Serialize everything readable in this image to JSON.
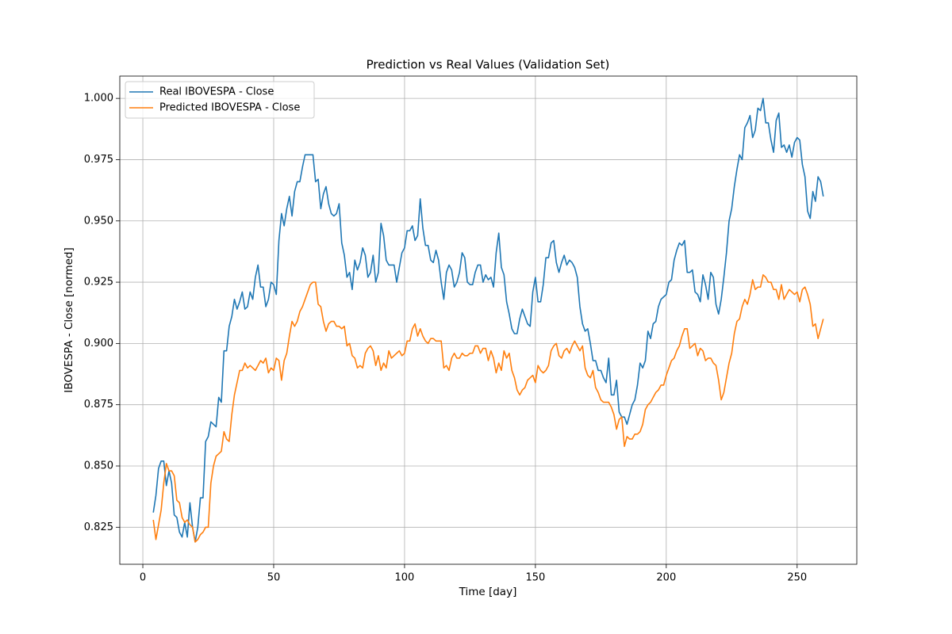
{
  "chart_data": {
    "type": "line",
    "title": "Prediction vs Real Values (Validation Set)",
    "xlabel": "Time [day]",
    "ylabel": "IBOVESPA - Close [normed]",
    "x": [
      4,
      5,
      6,
      7,
      8,
      9,
      10,
      11,
      12,
      13,
      14,
      15,
      16,
      17,
      18,
      19,
      20,
      21,
      22,
      23,
      24,
      25,
      26,
      27,
      28,
      29,
      30,
      31,
      32,
      33,
      34,
      35,
      36,
      37,
      38,
      39,
      40,
      41,
      42,
      43,
      44,
      45,
      46,
      47,
      48,
      49,
      50,
      51,
      52,
      53,
      54,
      55,
      56,
      57,
      58,
      59,
      60,
      61,
      62,
      63,
      64,
      65,
      66,
      67,
      68,
      69,
      70,
      71,
      72,
      73,
      74,
      75,
      76,
      77,
      78,
      79,
      80,
      81,
      82,
      83,
      84,
      85,
      86,
      87,
      88,
      89,
      90,
      91,
      92,
      93,
      94,
      95,
      96,
      97,
      98,
      99,
      100,
      101,
      102,
      103,
      104,
      105,
      106,
      107,
      108,
      109,
      110,
      111,
      112,
      113,
      114,
      115,
      116,
      117,
      118,
      119,
      120,
      121,
      122,
      123,
      124,
      125,
      126,
      127,
      128,
      129,
      130,
      131,
      132,
      133,
      134,
      135,
      136,
      137,
      138,
      139,
      140,
      141,
      142,
      143,
      144,
      145,
      146,
      147,
      148,
      149,
      150,
      151,
      152,
      153,
      154,
      155,
      156,
      157,
      158,
      159,
      160,
      161,
      162,
      163,
      164,
      165,
      166,
      167,
      168,
      169,
      170,
      171,
      172,
      173,
      174,
      175,
      176,
      177,
      178,
      179,
      180,
      181,
      182,
      183,
      184,
      185,
      186,
      187,
      188,
      189,
      190,
      191,
      192,
      193,
      194,
      195,
      196,
      197,
      198,
      199,
      200,
      201,
      202,
      203,
      204,
      205,
      206,
      207,
      208,
      209,
      210,
      211,
      212,
      213,
      214,
      215,
      216,
      217,
      218,
      219,
      220,
      221,
      222,
      223,
      224,
      225,
      226,
      227,
      228,
      229,
      230,
      231,
      232,
      233,
      234,
      235,
      236,
      237,
      238,
      239,
      240,
      241,
      242,
      243,
      244,
      245,
      246,
      247,
      248,
      249,
      250,
      251,
      252,
      253,
      254,
      255,
      256,
      257,
      258,
      259,
      260
    ],
    "series": [
      {
        "name": "Real IBOVESPA - Close",
        "color": "#1f77b4",
        "values": [
          0.831,
          0.838,
          0.849,
          0.852,
          0.852,
          0.842,
          0.848,
          0.843,
          0.83,
          0.829,
          0.823,
          0.821,
          0.827,
          0.821,
          0.835,
          0.825,
          0.819,
          0.825,
          0.837,
          0.837,
          0.86,
          0.862,
          0.868,
          0.867,
          0.866,
          0.878,
          0.876,
          0.897,
          0.897,
          0.907,
          0.911,
          0.918,
          0.914,
          0.917,
          0.921,
          0.914,
          0.915,
          0.921,
          0.918,
          0.927,
          0.932,
          0.923,
          0.923,
          0.915,
          0.918,
          0.925,
          0.924,
          0.92,
          0.942,
          0.953,
          0.948,
          0.955,
          0.96,
          0.952,
          0.962,
          0.966,
          0.966,
          0.972,
          0.977,
          0.977,
          0.977,
          0.977,
          0.966,
          0.967,
          0.955,
          0.961,
          0.964,
          0.957,
          0.953,
          0.952,
          0.953,
          0.957,
          0.941,
          0.936,
          0.927,
          0.929,
          0.922,
          0.934,
          0.93,
          0.933,
          0.939,
          0.936,
          0.927,
          0.929,
          0.936,
          0.925,
          0.929,
          0.949,
          0.944,
          0.934,
          0.932,
          0.932,
          0.932,
          0.925,
          0.931,
          0.937,
          0.939,
          0.946,
          0.946,
          0.948,
          0.942,
          0.944,
          0.959,
          0.947,
          0.94,
          0.94,
          0.934,
          0.933,
          0.938,
          0.934,
          0.925,
          0.918,
          0.929,
          0.932,
          0.93,
          0.923,
          0.925,
          0.929,
          0.937,
          0.935,
          0.925,
          0.924,
          0.924,
          0.929,
          0.932,
          0.932,
          0.925,
          0.928,
          0.926,
          0.927,
          0.923,
          0.937,
          0.945,
          0.931,
          0.928,
          0.917,
          0.912,
          0.906,
          0.904,
          0.904,
          0.91,
          0.914,
          0.911,
          0.908,
          0.907,
          0.921,
          0.927,
          0.917,
          0.917,
          0.924,
          0.935,
          0.935,
          0.941,
          0.942,
          0.933,
          0.929,
          0.933,
          0.936,
          0.932,
          0.934,
          0.933,
          0.931,
          0.927,
          0.915,
          0.908,
          0.905,
          0.906,
          0.9,
          0.893,
          0.893,
          0.889,
          0.889,
          0.886,
          0.884,
          0.894,
          0.879,
          0.879,
          0.885,
          0.872,
          0.87,
          0.87,
          0.867,
          0.871,
          0.875,
          0.877,
          0.883,
          0.892,
          0.89,
          0.893,
          0.905,
          0.902,
          0.908,
          0.909,
          0.915,
          0.918,
          0.919,
          0.92,
          0.925,
          0.926,
          0.934,
          0.938,
          0.941,
          0.94,
          0.942,
          0.929,
          0.929,
          0.93,
          0.921,
          0.92,
          0.917,
          0.928,
          0.924,
          0.918,
          0.929,
          0.927,
          0.916,
          0.912,
          0.918,
          0.927,
          0.937,
          0.95,
          0.955,
          0.964,
          0.971,
          0.977,
          0.975,
          0.988,
          0.99,
          0.993,
          0.984,
          0.987,
          0.996,
          0.995,
          1.0,
          0.99,
          0.99,
          0.983,
          0.978,
          0.991,
          0.994,
          0.98,
          0.981,
          0.978,
          0.981,
          0.976,
          0.982,
          0.984,
          0.983,
          0.973,
          0.968,
          0.954,
          0.951,
          0.962,
          0.958,
          0.968,
          0.966,
          0.96
        ]
      },
      {
        "name": "Predicted IBOVESPA - Close",
        "color": "#ff7f0e",
        "values": [
          0.828,
          0.82,
          0.826,
          0.832,
          0.843,
          0.851,
          0.848,
          0.848,
          0.846,
          0.836,
          0.835,
          0.829,
          0.827,
          0.828,
          0.826,
          0.825,
          0.819,
          0.82,
          0.822,
          0.823,
          0.825,
          0.825,
          0.843,
          0.85,
          0.854,
          0.855,
          0.856,
          0.864,
          0.861,
          0.86,
          0.871,
          0.879,
          0.884,
          0.889,
          0.889,
          0.892,
          0.89,
          0.891,
          0.89,
          0.889,
          0.891,
          0.893,
          0.892,
          0.894,
          0.888,
          0.89,
          0.889,
          0.894,
          0.893,
          0.885,
          0.893,
          0.896,
          0.903,
          0.909,
          0.907,
          0.909,
          0.913,
          0.915,
          0.918,
          0.921,
          0.924,
          0.925,
          0.925,
          0.916,
          0.915,
          0.909,
          0.905,
          0.908,
          0.909,
          0.909,
          0.907,
          0.907,
          0.906,
          0.907,
          0.899,
          0.9,
          0.895,
          0.894,
          0.89,
          0.891,
          0.89,
          0.896,
          0.898,
          0.899,
          0.897,
          0.891,
          0.895,
          0.889,
          0.892,
          0.89,
          0.897,
          0.894,
          0.895,
          0.896,
          0.897,
          0.895,
          0.896,
          0.901,
          0.901,
          0.906,
          0.908,
          0.903,
          0.906,
          0.903,
          0.901,
          0.9,
          0.902,
          0.902,
          0.901,
          0.901,
          0.901,
          0.89,
          0.891,
          0.889,
          0.894,
          0.896,
          0.894,
          0.894,
          0.896,
          0.895,
          0.895,
          0.896,
          0.896,
          0.899,
          0.899,
          0.896,
          0.898,
          0.898,
          0.893,
          0.897,
          0.894,
          0.888,
          0.892,
          0.889,
          0.897,
          0.894,
          0.896,
          0.889,
          0.886,
          0.881,
          0.879,
          0.881,
          0.882,
          0.885,
          0.886,
          0.887,
          0.884,
          0.891,
          0.889,
          0.888,
          0.889,
          0.891,
          0.897,
          0.899,
          0.9,
          0.895,
          0.894,
          0.897,
          0.898,
          0.896,
          0.899,
          0.901,
          0.899,
          0.897,
          0.899,
          0.89,
          0.887,
          0.886,
          0.889,
          0.882,
          0.88,
          0.877,
          0.876,
          0.876,
          0.876,
          0.874,
          0.871,
          0.865,
          0.869,
          0.87,
          0.858,
          0.862,
          0.861,
          0.861,
          0.863,
          0.863,
          0.864,
          0.867,
          0.873,
          0.875,
          0.876,
          0.878,
          0.88,
          0.881,
          0.883,
          0.883,
          0.887,
          0.89,
          0.893,
          0.894,
          0.897,
          0.899,
          0.903,
          0.906,
          0.906,
          0.898,
          0.899,
          0.9,
          0.895,
          0.898,
          0.897,
          0.893,
          0.894,
          0.894,
          0.892,
          0.891,
          0.885,
          0.877,
          0.88,
          0.886,
          0.892,
          0.896,
          0.904,
          0.909,
          0.91,
          0.915,
          0.918,
          0.916,
          0.92,
          0.926,
          0.922,
          0.923,
          0.923,
          0.928,
          0.927,
          0.925,
          0.925,
          0.922,
          0.922,
          0.918,
          0.924,
          0.918,
          0.92,
          0.922,
          0.921,
          0.92,
          0.921,
          0.917,
          0.922,
          0.923,
          0.92,
          0.916,
          0.907,
          0.908,
          0.902,
          0.906,
          0.91
        ]
      }
    ],
    "xlim": [
      -8.8,
      272.8
    ],
    "ylim": [
      0.8099,
      1.0091
    ],
    "xticks": [
      0,
      50,
      100,
      150,
      200,
      250
    ],
    "yticks": [
      0.825,
      {
        "value": 0.85,
        "label": "0.850"
      },
      0.875,
      {
        "value": 0.9,
        "label": "0.900"
      },
      0.925,
      {
        "value": 0.95,
        "label": "0.950"
      },
      0.975,
      {
        "value": 1.0,
        "label": "1.000"
      }
    ],
    "grid": true,
    "legend": "upper-left"
  }
}
